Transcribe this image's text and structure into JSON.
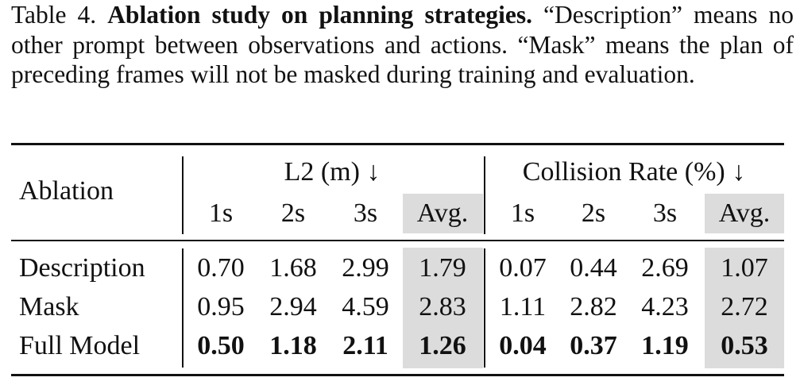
{
  "caption": {
    "label": "Table 4.",
    "title": "Ablation study on planning strategies.",
    "text": "“Description” means no other prompt between observations and actions. “Mask” means the plan of preceding frames will not be masked during training and evaluation."
  },
  "table": {
    "row_header": "Ablation",
    "groups": [
      "L2 (m) ↓",
      "Collision Rate (%) ↓"
    ],
    "subcolumns": [
      "1s",
      "2s",
      "3s",
      "Avg.",
      "1s",
      "2s",
      "3s",
      "Avg."
    ],
    "rows": [
      {
        "name": "Description",
        "values": [
          "0.70",
          "1.68",
          "2.99",
          "1.79",
          "0.07",
          "0.44",
          "2.69",
          "1.07"
        ]
      },
      {
        "name": "Mask",
        "values": [
          "0.95",
          "2.94",
          "4.59",
          "2.83",
          "1.11",
          "2.82",
          "4.23",
          "2.72"
        ]
      },
      {
        "name": "Full Model",
        "values": [
          "0.50",
          "1.18",
          "2.11",
          "1.26",
          "0.04",
          "0.37",
          "1.19",
          "0.53"
        ]
      }
    ]
  }
}
